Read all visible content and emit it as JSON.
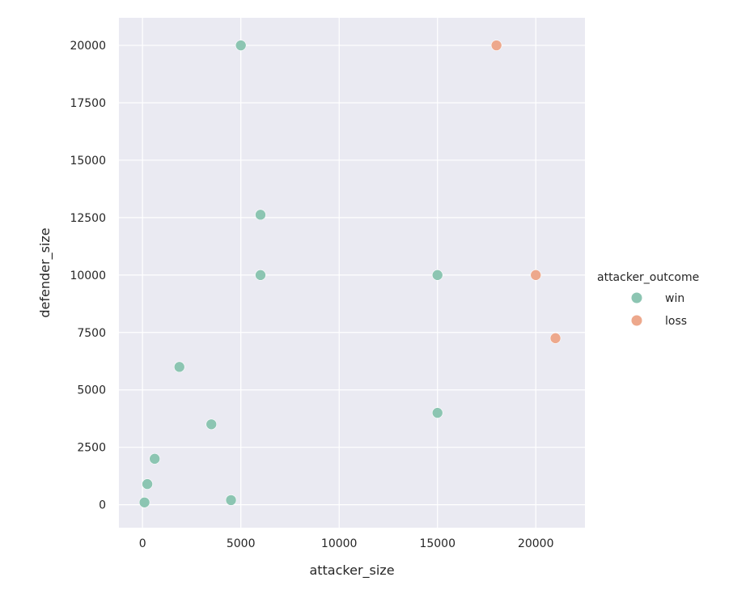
{
  "chart_data": {
    "type": "scatter",
    "xlabel": "attacker_size",
    "ylabel": "defender_size",
    "xlim": [
      -1200,
      22500
    ],
    "ylim": [
      -1000,
      21200
    ],
    "xticks": [
      0,
      5000,
      10000,
      15000,
      20000
    ],
    "yticks": [
      0,
      2500,
      5000,
      7500,
      10000,
      12500,
      15000,
      17500,
      20000
    ],
    "grid": true,
    "legend": {
      "title": "attacker_outcome",
      "placement": "right"
    },
    "series": [
      {
        "name": "win",
        "color": "#8cc5b2",
        "points": [
          [
            5000,
            20000
          ],
          [
            6000,
            12625
          ],
          [
            6000,
            10000
          ],
          [
            15000,
            10000
          ],
          [
            1875,
            6000
          ],
          [
            3500,
            3500
          ],
          [
            15000,
            4000
          ],
          [
            618,
            2000
          ],
          [
            244,
            900
          ],
          [
            100,
            100
          ],
          [
            4500,
            200
          ]
        ]
      },
      {
        "name": "loss",
        "color": "#eda88c",
        "points": [
          [
            18000,
            20000
          ],
          [
            20000,
            10000
          ],
          [
            21000,
            7250
          ]
        ]
      }
    ]
  }
}
